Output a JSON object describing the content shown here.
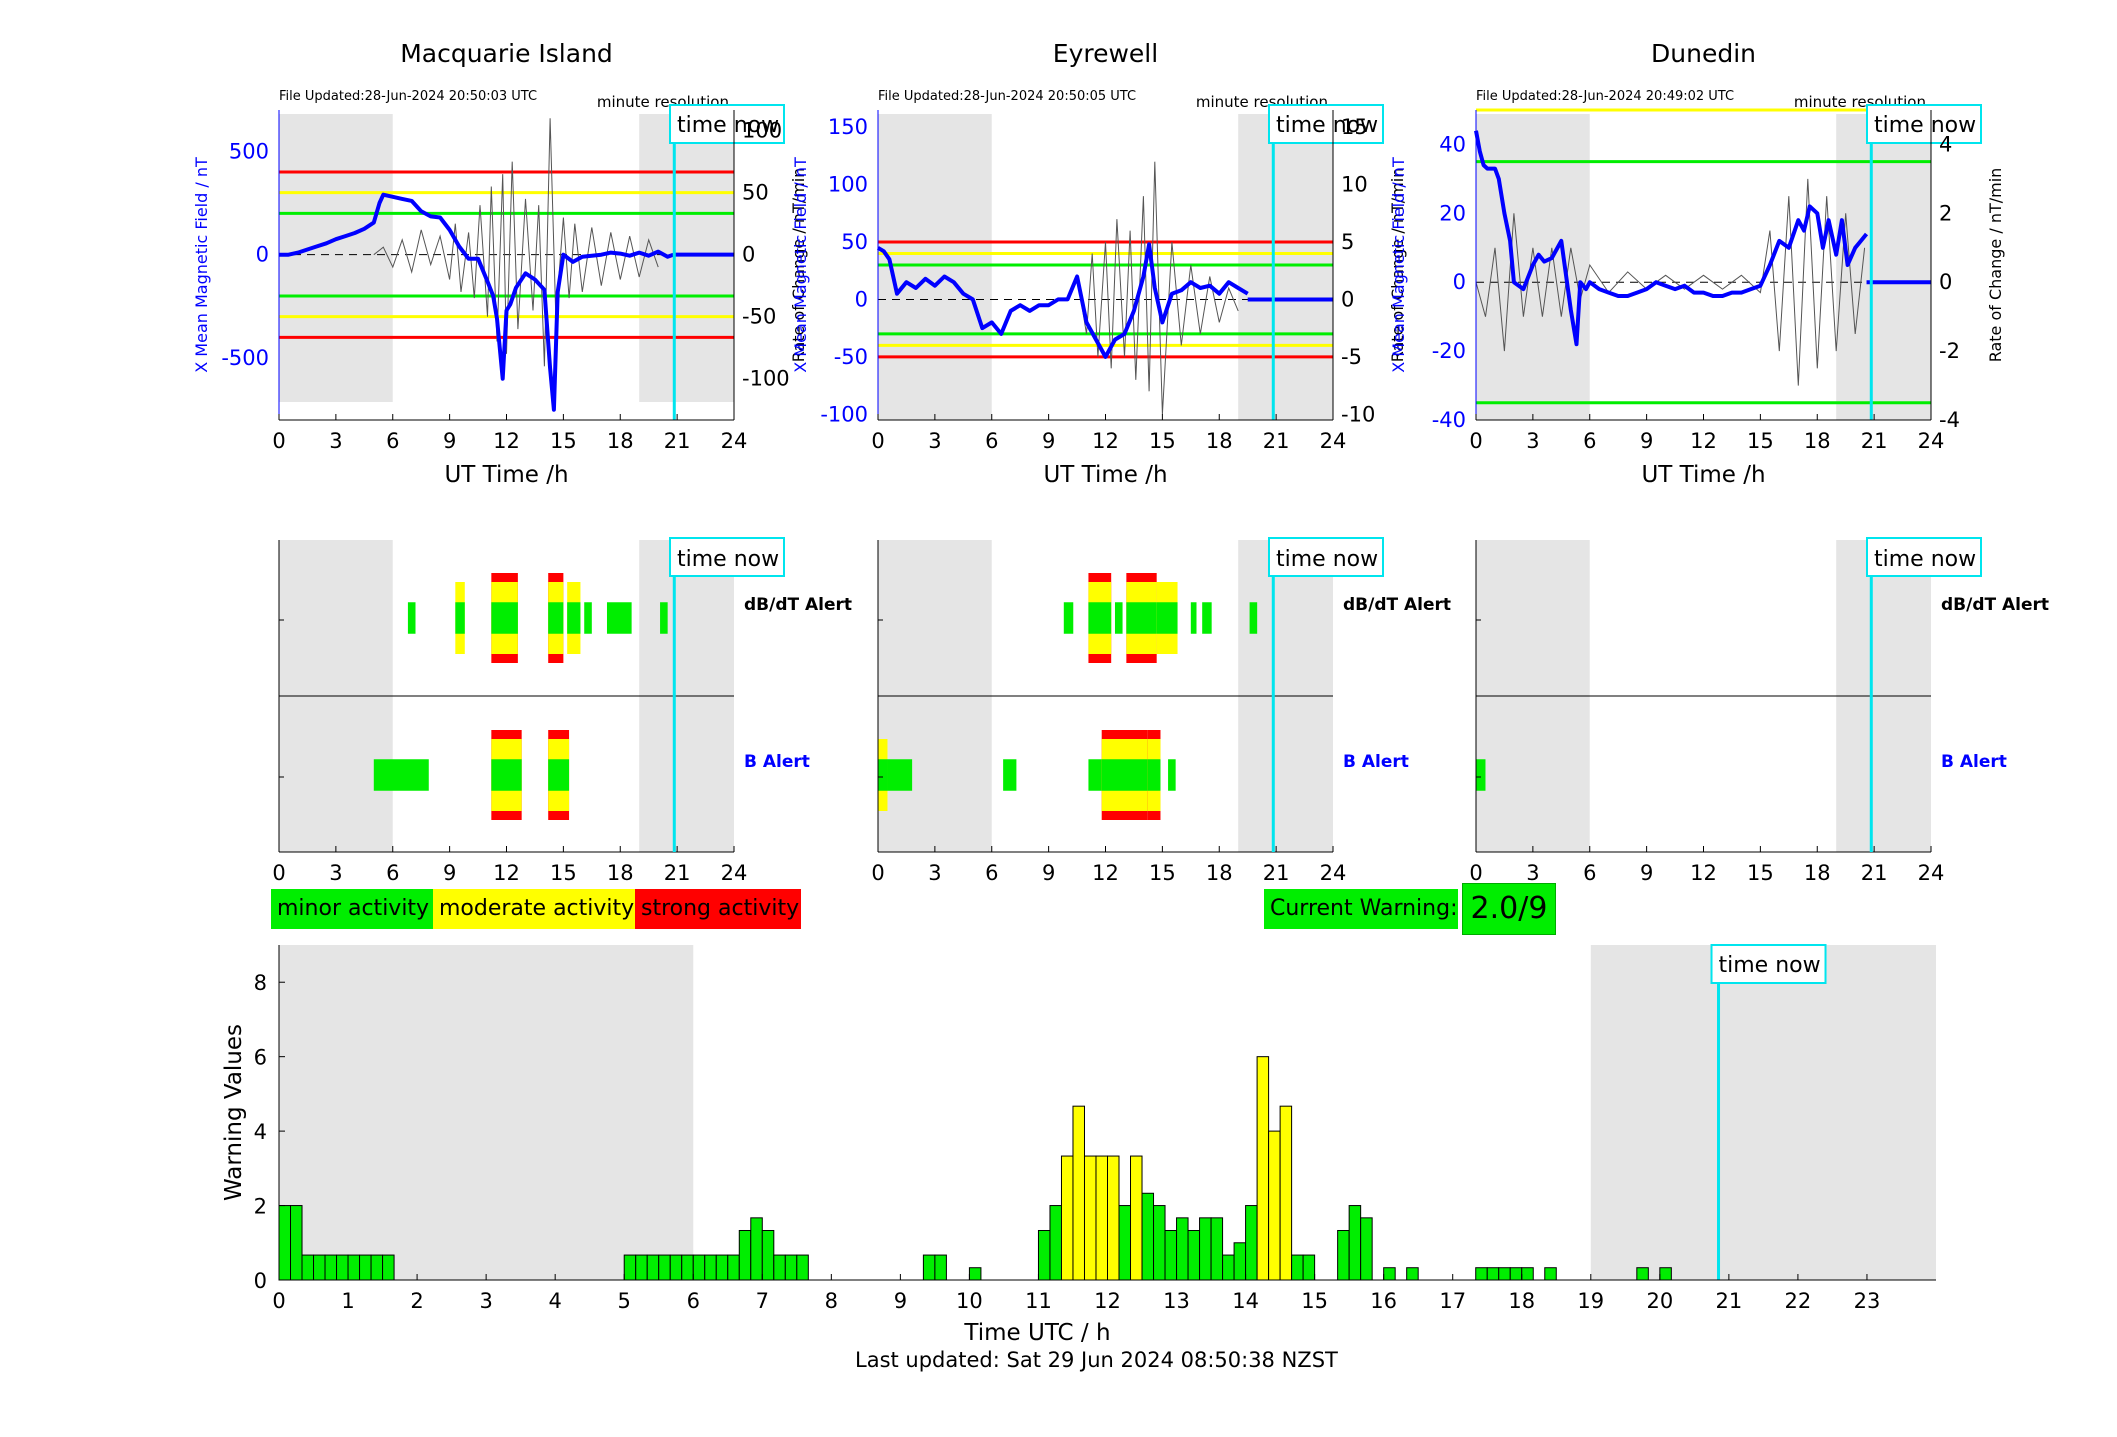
{
  "colors": {
    "minor": "#00ee00",
    "moderate": "#ffff00",
    "strong": "#ff0000",
    "now": "#00e5ee",
    "field": "#0000ff",
    "shade": "#e5e5e5"
  },
  "legend": {
    "minor": "minor activity",
    "moderate": "moderate activity",
    "strong": "strong activity"
  },
  "current_warning": {
    "label": "Current Warning:",
    "value": "2.0/9"
  },
  "last_updated": "Last updated: Sat 29 Jun 2024 08:50:38 NZST",
  "alert_labels": {
    "dbdt": "dB/dT Alert",
    "b": "B Alert"
  },
  "time_now_label": "time now",
  "chart_data": [
    {
      "type": "line",
      "station": "Macquarie Island",
      "title": "Macquarie Island",
      "file_updated": "File Updated:28-Jun-2024 20:50:03 UTC",
      "resolution": "minute resolution",
      "xlabel": "UT Time /h",
      "ylabel": "X Mean Magnetic Field / nT",
      "y2label": "Rate of Change / nT/min",
      "xlim": [
        0,
        24
      ],
      "xticks": [
        0,
        3,
        6,
        9,
        12,
        15,
        18,
        21,
        24
      ],
      "ylim": [
        -800,
        700
      ],
      "yticks": [
        -500,
        0,
        500
      ],
      "y2lim": [
        -133.33,
        116.67
      ],
      "y2ticks": [
        -100,
        -50,
        0,
        50,
        100
      ],
      "night_shading": [
        [
          0,
          6
        ],
        [
          19,
          24
        ]
      ],
      "time_now": 20.85,
      "thresholds": [
        {
          "level": "strong",
          "values": [
            400,
            -400
          ]
        },
        {
          "level": "moderate",
          "values": [
            300,
            -300
          ]
        },
        {
          "level": "minor",
          "values": [
            200,
            -200
          ]
        }
      ],
      "field_series": {
        "x": [
          0,
          0.5,
          1,
          1.5,
          2,
          2.5,
          3,
          3.5,
          4,
          4.5,
          5,
          5.3,
          5.5,
          6,
          6.5,
          7,
          7.5,
          8,
          8.5,
          9,
          9.5,
          10,
          10.5,
          11,
          11.3,
          11.5,
          11.8,
          12,
          12.2,
          12.5,
          13,
          13.5,
          14,
          14.3,
          14.5,
          14.7,
          15,
          15.5,
          16,
          16.5,
          17,
          17.5,
          18,
          18.5,
          19,
          19.5,
          20,
          20.5,
          20.8
        ],
        "y": [
          0,
          0,
          10,
          25,
          40,
          55,
          75,
          90,
          105,
          125,
          155,
          250,
          290,
          280,
          270,
          260,
          210,
          185,
          180,
          120,
          40,
          -20,
          -20,
          -130,
          -200,
          -310,
          -600,
          -270,
          -240,
          -160,
          -90,
          -120,
          -170,
          -550,
          -750,
          -180,
          0,
          -35,
          -10,
          -5,
          0,
          10,
          5,
          -5,
          10,
          -5,
          15,
          -10,
          0
        ]
      },
      "roc_series": {
        "x": [
          5,
          5.5,
          6,
          6.5,
          7,
          7.5,
          8,
          8.5,
          9,
          9.3,
          9.6,
          10,
          10.3,
          10.6,
          11,
          11.2,
          11.5,
          11.8,
          12,
          12.3,
          12.6,
          13,
          13.4,
          13.7,
          14,
          14.3,
          14.6,
          15,
          15.3,
          15.6,
          16,
          16.5,
          17,
          17.5,
          18,
          18.5,
          19,
          19.5,
          20
        ],
        "y": [
          0,
          6,
          -10,
          12,
          -14,
          20,
          -8,
          15,
          -20,
          25,
          -30,
          18,
          -35,
          40,
          -50,
          55,
          -70,
          65,
          -80,
          75,
          -60,
          45,
          -45,
          40,
          -90,
          110,
          -50,
          30,
          -35,
          25,
          -30,
          22,
          -25,
          18,
          -20,
          15,
          -18,
          12,
          -10
        ]
      }
    },
    {
      "type": "line",
      "station": "Eyrewell",
      "title": "Eyrewell",
      "file_updated": "File Updated:28-Jun-2024 20:50:05 UTC",
      "resolution": "minute resolution",
      "xlabel": "UT Time /h",
      "ylabel": "X Mean Magnetic Field / nT",
      "y2label": "Rate of Change / nT/min",
      "xlim": [
        0,
        24
      ],
      "xticks": [
        0,
        3,
        6,
        9,
        12,
        15,
        18,
        21,
        24
      ],
      "ylim": [
        -105,
        165
      ],
      "yticks": [
        -100,
        -50,
        0,
        50,
        100,
        150
      ],
      "y2lim": [
        -10.5,
        16.5
      ],
      "y2ticks": [
        -10,
        -5,
        0,
        5,
        10,
        15
      ],
      "night_shading": [
        [
          0,
          6
        ],
        [
          19,
          24
        ]
      ],
      "time_now": 20.85,
      "thresholds": [
        {
          "level": "strong",
          "values": [
            50,
            -50
          ]
        },
        {
          "level": "moderate",
          "values": [
            40,
            -40
          ]
        },
        {
          "level": "minor",
          "values": [
            30,
            -30
          ]
        }
      ],
      "field_series": {
        "x": [
          0,
          0.3,
          0.6,
          1,
          1.5,
          2,
          2.5,
          3,
          3.5,
          4,
          4.5,
          5,
          5.5,
          6,
          6.5,
          7,
          7.5,
          8,
          8.5,
          9,
          9.5,
          10,
          10.5,
          11,
          11.5,
          12,
          12.5,
          13,
          13.5,
          14,
          14.3,
          14.6,
          15,
          15.5,
          16,
          16.5,
          17,
          17.5,
          18,
          18.5,
          19,
          19.5
        ],
        "y": [
          45,
          42,
          35,
          5,
          15,
          10,
          18,
          12,
          20,
          15,
          5,
          0,
          -25,
          -20,
          -30,
          -10,
          -5,
          -10,
          -5,
          -5,
          0,
          0,
          20,
          -20,
          -35,
          -50,
          -35,
          -30,
          -10,
          20,
          48,
          10,
          -20,
          5,
          8,
          15,
          10,
          12,
          5,
          15,
          10,
          5
        ]
      },
      "roc_series": {
        "x": [
          10,
          10.5,
          11,
          11.3,
          11.6,
          12,
          12.3,
          12.6,
          13,
          13.3,
          13.6,
          14,
          14.3,
          14.6,
          15,
          15.5,
          16,
          16.5,
          17,
          17.5,
          18,
          18.5,
          19
        ],
        "y": [
          0,
          2,
          -3,
          4,
          -5,
          5,
          -6,
          7,
          -5,
          6,
          -7,
          9,
          -8,
          12,
          -10,
          5,
          -4,
          3,
          -3,
          2,
          -2,
          1,
          -1
        ]
      }
    },
    {
      "type": "line",
      "station": "Dunedin",
      "title": "Dunedin",
      "file_updated": "File Updated:28-Jun-2024 20:49:02 UTC",
      "resolution": "minute resolution",
      "xlabel": "UT Time /h",
      "ylabel": "X Mean Magnetic Field / nT",
      "y2label": "Rate of Change / nT/min",
      "xlim": [
        0,
        24
      ],
      "xticks": [
        0,
        3,
        6,
        9,
        12,
        15,
        18,
        21,
        24
      ],
      "ylim": [
        -40,
        50
      ],
      "yticks": [
        -40,
        -20,
        0,
        20,
        40
      ],
      "y2lim": [
        -4,
        5
      ],
      "y2ticks": [
        -4,
        -2,
        0,
        2,
        4
      ],
      "night_shading": [
        [
          0,
          6
        ],
        [
          19,
          24
        ]
      ],
      "time_now": 20.85,
      "thresholds": [
        {
          "level": "moderate",
          "values": [
            50
          ]
        },
        {
          "level": "minor",
          "values": [
            35,
            -35
          ]
        }
      ],
      "field_series": {
        "x": [
          0,
          0.2,
          0.4,
          0.6,
          1,
          1.2,
          1.5,
          1.8,
          2,
          2.5,
          3,
          3.3,
          3.6,
          4,
          4.5,
          5,
          5.3,
          5.5,
          5.8,
          6,
          6.5,
          7,
          7.5,
          8,
          8.5,
          9,
          9.5,
          10,
          10.5,
          11,
          11.5,
          12,
          12.5,
          13,
          13.5,
          14,
          14.5,
          15,
          15.5,
          16,
          16.5,
          17,
          17.3,
          17.6,
          18,
          18.3,
          18.6,
          19,
          19.3,
          19.6,
          20,
          20.3,
          20.6
        ],
        "y": [
          44,
          38,
          34,
          33,
          33,
          30,
          20,
          12,
          0,
          -2,
          5,
          8,
          6,
          7,
          12,
          -8,
          -18,
          0,
          -2,
          0,
          -2,
          -3,
          -4,
          -4,
          -3,
          -2,
          0,
          -1,
          -2,
          -1,
          -3,
          -3,
          -4,
          -4,
          -3,
          -3,
          -2,
          -1,
          5,
          12,
          10,
          18,
          15,
          22,
          20,
          10,
          18,
          8,
          18,
          5,
          10,
          12,
          14
        ]
      },
      "roc_series": {
        "x": [
          0,
          0.5,
          1,
          1.5,
          2,
          2.5,
          3,
          3.5,
          4,
          4.5,
          5,
          5.5,
          6,
          7,
          8,
          9,
          10,
          11,
          12,
          13,
          14,
          15,
          15.5,
          16,
          16.5,
          17,
          17.5,
          18,
          18.5,
          19,
          19.5,
          20,
          20.5
        ],
        "y": [
          0,
          -1,
          1,
          -2,
          2,
          -1,
          1,
          -1,
          1,
          -1,
          1,
          -0.5,
          0.5,
          -0.3,
          0.3,
          -0.2,
          0.2,
          -0.2,
          0.2,
          -0.2,
          0.2,
          -0.3,
          1.5,
          -2,
          2.5,
          -3,
          3,
          -2.5,
          2.5,
          -2,
          2,
          -1.5,
          1
        ]
      }
    },
    {
      "type": "bar",
      "panel": "warning-values",
      "xlabel": "Time UTC / h",
      "ylabel": "Warning Values",
      "xlim": [
        0,
        24
      ],
      "xticks": [
        0,
        1,
        2,
        3,
        4,
        5,
        6,
        7,
        8,
        9,
        10,
        11,
        12,
        13,
        14,
        15,
        16,
        17,
        18,
        19,
        20,
        21,
        22,
        23
      ],
      "ylim": [
        0,
        9
      ],
      "yticks": [
        0,
        2,
        4,
        6,
        8
      ],
      "night_shading": [
        [
          0,
          6
        ],
        [
          19,
          24
        ]
      ],
      "time_now": 20.85,
      "bar_width_h": 0.1667,
      "bars": [
        [
          0,
          2,
          "minor"
        ],
        [
          0.1667,
          2,
          "minor"
        ],
        [
          0.3333,
          0.67,
          "minor"
        ],
        [
          0.5,
          0.67,
          "minor"
        ],
        [
          0.6667,
          0.67,
          "minor"
        ],
        [
          0.8333,
          0.67,
          "minor"
        ],
        [
          1,
          0.67,
          "minor"
        ],
        [
          1.1667,
          0.67,
          "minor"
        ],
        [
          1.3333,
          0.67,
          "minor"
        ],
        [
          1.5,
          0.67,
          "minor"
        ],
        [
          5,
          0.67,
          "minor"
        ],
        [
          5.1667,
          0.67,
          "minor"
        ],
        [
          5.3333,
          0.67,
          "minor"
        ],
        [
          5.5,
          0.67,
          "minor"
        ],
        [
          5.6667,
          0.67,
          "minor"
        ],
        [
          5.8333,
          0.67,
          "minor"
        ],
        [
          6,
          0.67,
          "minor"
        ],
        [
          6.1667,
          0.67,
          "minor"
        ],
        [
          6.3333,
          0.67,
          "minor"
        ],
        [
          6.5,
          0.67,
          "minor"
        ],
        [
          6.6667,
          1.33,
          "minor"
        ],
        [
          6.8333,
          1.67,
          "minor"
        ],
        [
          7,
          1.33,
          "minor"
        ],
        [
          7.1667,
          0.67,
          "minor"
        ],
        [
          7.3333,
          0.67,
          "minor"
        ],
        [
          7.5,
          0.67,
          "minor"
        ],
        [
          9.3333,
          0.67,
          "minor"
        ],
        [
          9.5,
          0.67,
          "minor"
        ],
        [
          10,
          0.33,
          "minor"
        ],
        [
          11,
          1.33,
          "minor"
        ],
        [
          11.1667,
          2,
          "minor"
        ],
        [
          11.3333,
          3.33,
          "moderate"
        ],
        [
          11.5,
          4.67,
          "moderate"
        ],
        [
          11.6667,
          3.33,
          "moderate"
        ],
        [
          11.8333,
          3.33,
          "moderate"
        ],
        [
          12,
          3.33,
          "moderate"
        ],
        [
          12.1667,
          2,
          "minor"
        ],
        [
          12.3333,
          3.33,
          "moderate"
        ],
        [
          12.5,
          2.33,
          "minor"
        ],
        [
          12.6667,
          2,
          "minor"
        ],
        [
          12.8333,
          1.33,
          "minor"
        ],
        [
          13,
          1.67,
          "minor"
        ],
        [
          13.1667,
          1.33,
          "minor"
        ],
        [
          13.3333,
          1.67,
          "minor"
        ],
        [
          13.5,
          1.67,
          "minor"
        ],
        [
          13.6667,
          0.67,
          "minor"
        ],
        [
          13.8333,
          1,
          "minor"
        ],
        [
          14,
          2,
          "minor"
        ],
        [
          14.1667,
          6,
          "moderate"
        ],
        [
          14.3333,
          4,
          "moderate"
        ],
        [
          14.5,
          4.67,
          "moderate"
        ],
        [
          14.6667,
          0.67,
          "minor"
        ],
        [
          14.8333,
          0.67,
          "minor"
        ],
        [
          15.3333,
          1.33,
          "minor"
        ],
        [
          15.5,
          2,
          "minor"
        ],
        [
          15.6667,
          1.67,
          "minor"
        ],
        [
          16,
          0.33,
          "minor"
        ],
        [
          16.3333,
          0.33,
          "minor"
        ],
        [
          17.3333,
          0.33,
          "minor"
        ],
        [
          17.5,
          0.33,
          "minor"
        ],
        [
          17.6667,
          0.33,
          "minor"
        ],
        [
          17.8333,
          0.33,
          "minor"
        ],
        [
          18,
          0.33,
          "minor"
        ],
        [
          18.3333,
          0.33,
          "minor"
        ],
        [
          19.6667,
          0.33,
          "minor"
        ],
        [
          20,
          0.33,
          "minor"
        ]
      ]
    }
  ],
  "alerts": [
    {
      "station": "Macquarie Island",
      "dbdt": [
        [
          6.8,
          7.2,
          "minor"
        ],
        [
          9.3,
          9.8,
          "moderate"
        ],
        [
          11.2,
          12.6,
          "strong"
        ],
        [
          14.2,
          15.0,
          "strong"
        ],
        [
          15.2,
          15.9,
          "moderate"
        ],
        [
          16.1,
          16.5,
          "minor"
        ],
        [
          17.3,
          18.6,
          "minor"
        ],
        [
          20.1,
          20.5,
          "minor"
        ]
      ],
      "b": [
        [
          5.0,
          7.9,
          "minor"
        ],
        [
          11.2,
          12.8,
          "strong"
        ],
        [
          14.2,
          15.3,
          "strong"
        ]
      ]
    },
    {
      "station": "Eyrewell",
      "dbdt": [
        [
          9.8,
          10.3,
          "minor"
        ],
        [
          11.1,
          12.3,
          "strong"
        ],
        [
          12.5,
          12.9,
          "minor"
        ],
        [
          13.1,
          14.7,
          "strong"
        ],
        [
          14.7,
          15.8,
          "moderate"
        ],
        [
          16.5,
          16.8,
          "minor"
        ],
        [
          17.1,
          17.6,
          "minor"
        ],
        [
          19.6,
          20.0,
          "minor"
        ]
      ],
      "b": [
        [
          0,
          0.5,
          "moderate"
        ],
        [
          0.5,
          1.8,
          "minor"
        ],
        [
          6.6,
          7.3,
          "minor"
        ],
        [
          11.1,
          11.8,
          "minor"
        ],
        [
          11.8,
          14.2,
          "strong"
        ],
        [
          14.2,
          14.9,
          "strong"
        ],
        [
          15.3,
          15.7,
          "minor"
        ]
      ]
    },
    {
      "station": "Dunedin",
      "dbdt": [],
      "b": [
        [
          0,
          0.5,
          "minor"
        ]
      ]
    }
  ]
}
